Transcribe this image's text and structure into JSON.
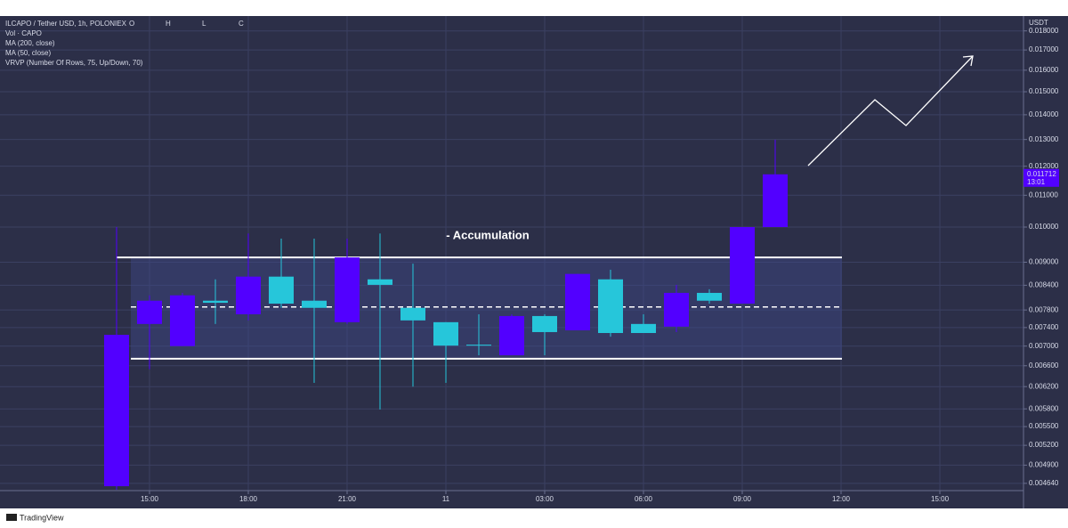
{
  "chart_data": {
    "type": "candlestick",
    "header": {
      "symbol": "ILCAPO / Tether USD, 1h, POLONIEX",
      "ohlc_labels": [
        "O",
        "H",
        "L",
        "C"
      ],
      "indicators": [
        "Vol · CAPO",
        "MA (200, close)",
        "MA (50, close)",
        "VRVP (Number Of Rows, 75, Up/Down, 70)"
      ]
    },
    "y_axis_label": "USDT",
    "log_scale": true,
    "grid": true,
    "up_color": "#5200ff",
    "down_color": "#26c6da",
    "x": [
      14,
      15,
      16,
      17,
      18,
      19,
      20,
      21,
      22,
      23,
      24,
      25,
      26,
      27,
      28,
      29,
      30,
      31,
      32,
      33,
      34
    ],
    "open": [
      0.0046,
      0.00748,
      0.007,
      0.00802,
      0.0077,
      0.00862,
      0.00802,
      0.00752,
      0.00855,
      0.00785,
      0.00752,
      0.00703,
      0.00681,
      0.00766,
      0.00734,
      0.00855,
      0.00748,
      0.00742,
      0.00821,
      0.00795,
      0.01
    ],
    "high": [
      0.01,
      0.00815,
      0.00821,
      0.00855,
      0.00981,
      0.00966,
      0.00966,
      0.00966,
      0.00981,
      0.00896,
      0.00752,
      0.0077,
      0.0077,
      0.0077,
      0.00869,
      0.0088,
      0.0077,
      0.00841,
      0.0083,
      0.01,
      0.01299
    ],
    "low": [
      0.00455,
      0.00653,
      0.007,
      0.00748,
      0.00756,
      0.00785,
      0.00627,
      0.00748,
      0.00579,
      0.0062,
      0.00627,
      0.00681,
      0.00681,
      0.00681,
      0.00734,
      0.0072,
      0.00728,
      0.0073,
      0.00795,
      0.00795,
      0.01
    ],
    "close": [
      0.00724,
      0.00802,
      0.00815,
      0.00797,
      0.00862,
      0.00795,
      0.00785,
      0.00913,
      0.00841,
      0.00756,
      0.00701,
      0.00701,
      0.00766,
      0.0073,
      0.00869,
      0.00728,
      0.00728,
      0.00821,
      0.00802,
      0.01,
      0.011712
    ],
    "last_price_label": "0.011712",
    "countdown": "13:01",
    "accumulation_zone": {
      "label": "- Accumulation",
      "high": 0.00913,
      "mid": 0.00787,
      "low": 0.00674
    },
    "xlim": [
      10.46,
      41.54
    ],
    "xticks": [
      {
        "value": 15,
        "label": "15:00"
      },
      {
        "value": 18,
        "label": "18:00"
      },
      {
        "value": 21,
        "label": "21:00"
      },
      {
        "value": 24,
        "label": "11"
      },
      {
        "value": 27,
        "label": "03:00"
      },
      {
        "value": 30,
        "label": "06:00"
      },
      {
        "value": 33,
        "label": "09:00"
      },
      {
        "value": 36,
        "label": "12:00"
      },
      {
        "value": 39,
        "label": "15:00"
      }
    ],
    "ylim": [
      0.00454,
      0.01882
    ],
    "yticks": [
      {
        "value": 0.018,
        "label": "0.018000"
      },
      {
        "value": 0.017,
        "label": "0.017000"
      },
      {
        "value": 0.016,
        "label": "0.016000"
      },
      {
        "value": 0.015,
        "label": "0.015000"
      },
      {
        "value": 0.014,
        "label": "0.014000"
      },
      {
        "value": 0.013,
        "label": "0.013000"
      },
      {
        "value": 0.012,
        "label": "0.012000"
      },
      {
        "value": 0.011,
        "label": "0.011000"
      },
      {
        "value": 0.01,
        "label": "0.010000"
      },
      {
        "value": 0.009,
        "label": "0.009000"
      },
      {
        "value": 0.0084,
        "label": "0.008400"
      },
      {
        "value": 0.0078,
        "label": "0.007800"
      },
      {
        "value": 0.0074,
        "label": "0.007400"
      },
      {
        "value": 0.007,
        "label": "0.007000"
      },
      {
        "value": 0.0066,
        "label": "0.006600"
      },
      {
        "value": 0.0062,
        "label": "0.006200"
      },
      {
        "value": 0.0058,
        "label": "0.005800"
      },
      {
        "value": 0.0055,
        "label": "0.005500"
      },
      {
        "value": 0.0052,
        "label": "0.005200"
      },
      {
        "value": 0.0049,
        "label": "0.004900"
      },
      {
        "value": 0.00464,
        "label": "0.004640"
      }
    ],
    "footer": "TradingView"
  }
}
